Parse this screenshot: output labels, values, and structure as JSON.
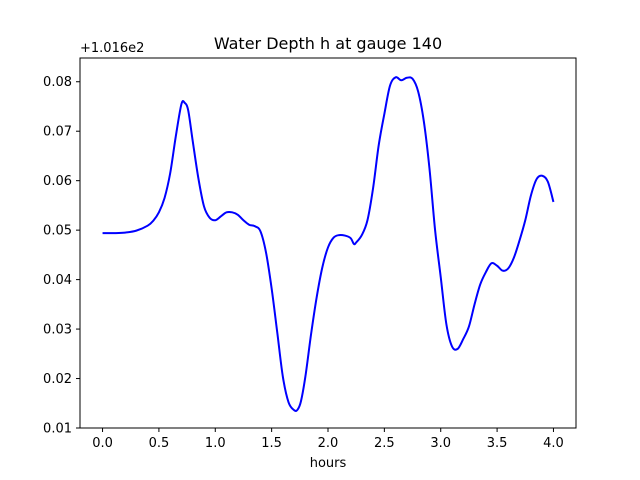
{
  "chart_data": {
    "type": "line",
    "title": "Water Depth h at gauge 140",
    "xlabel": "hours",
    "ylabel": "",
    "y_offset_label": "+1.016e2",
    "xlim": [
      -0.2,
      4.2
    ],
    "ylim": [
      0.01,
      0.0848
    ],
    "x_ticks": [
      0.0,
      0.5,
      1.0,
      1.5,
      2.0,
      2.5,
      3.0,
      3.5,
      4.0
    ],
    "x_tick_labels": [
      "0.0",
      "0.5",
      "1.0",
      "1.5",
      "2.0",
      "2.5",
      "3.0",
      "3.5",
      "4.0"
    ],
    "y_ticks": [
      0.01,
      0.02,
      0.03,
      0.04,
      0.05,
      0.06,
      0.07,
      0.08
    ],
    "y_tick_labels": [
      "0.01",
      "0.02",
      "0.03",
      "0.04",
      "0.05",
      "0.06",
      "0.07",
      "0.08"
    ],
    "grid": false,
    "series": [
      {
        "color": "#0000ff",
        "x": [
          0.0,
          0.1,
          0.2,
          0.3,
          0.4,
          0.45,
          0.5,
          0.55,
          0.6,
          0.65,
          0.7,
          0.73,
          0.76,
          0.8,
          0.85,
          0.9,
          0.95,
          1.0,
          1.05,
          1.1,
          1.15,
          1.2,
          1.25,
          1.3,
          1.35,
          1.4,
          1.45,
          1.5,
          1.55,
          1.6,
          1.65,
          1.7,
          1.73,
          1.76,
          1.8,
          1.85,
          1.9,
          1.95,
          2.0,
          2.05,
          2.1,
          2.15,
          2.2,
          2.23,
          2.25,
          2.3,
          2.35,
          2.4,
          2.45,
          2.5,
          2.55,
          2.6,
          2.65,
          2.7,
          2.75,
          2.8,
          2.85,
          2.9,
          2.95,
          3.0,
          3.05,
          3.1,
          3.15,
          3.2,
          3.25,
          3.3,
          3.35,
          3.4,
          3.45,
          3.5,
          3.55,
          3.6,
          3.65,
          3.7,
          3.75,
          3.8,
          3.85,
          3.9,
          3.95,
          4.0
        ],
        "y": [
          0.0494,
          0.0494,
          0.0495,
          0.0499,
          0.0509,
          0.0519,
          0.0536,
          0.0565,
          0.0615,
          0.069,
          0.0755,
          0.0757,
          0.0742,
          0.068,
          0.0605,
          0.0548,
          0.0525,
          0.052,
          0.0528,
          0.0536,
          0.0536,
          0.0531,
          0.052,
          0.0511,
          0.0508,
          0.0498,
          0.0455,
          0.0382,
          0.0293,
          0.0203,
          0.0152,
          0.0136,
          0.0137,
          0.0154,
          0.0205,
          0.029,
          0.0365,
          0.0425,
          0.0465,
          0.0485,
          0.049,
          0.0489,
          0.0484,
          0.0472,
          0.0475,
          0.049,
          0.052,
          0.0585,
          0.0672,
          0.0735,
          0.0792,
          0.0809,
          0.0803,
          0.0808,
          0.0806,
          0.078,
          0.072,
          0.0625,
          0.05,
          0.0405,
          0.031,
          0.0265,
          0.026,
          0.028,
          0.0305,
          0.035,
          0.039,
          0.0415,
          0.0433,
          0.0428,
          0.0418,
          0.0423,
          0.0445,
          0.048,
          0.052,
          0.057,
          0.0603,
          0.061,
          0.0598,
          0.0557
        ]
      }
    ]
  }
}
